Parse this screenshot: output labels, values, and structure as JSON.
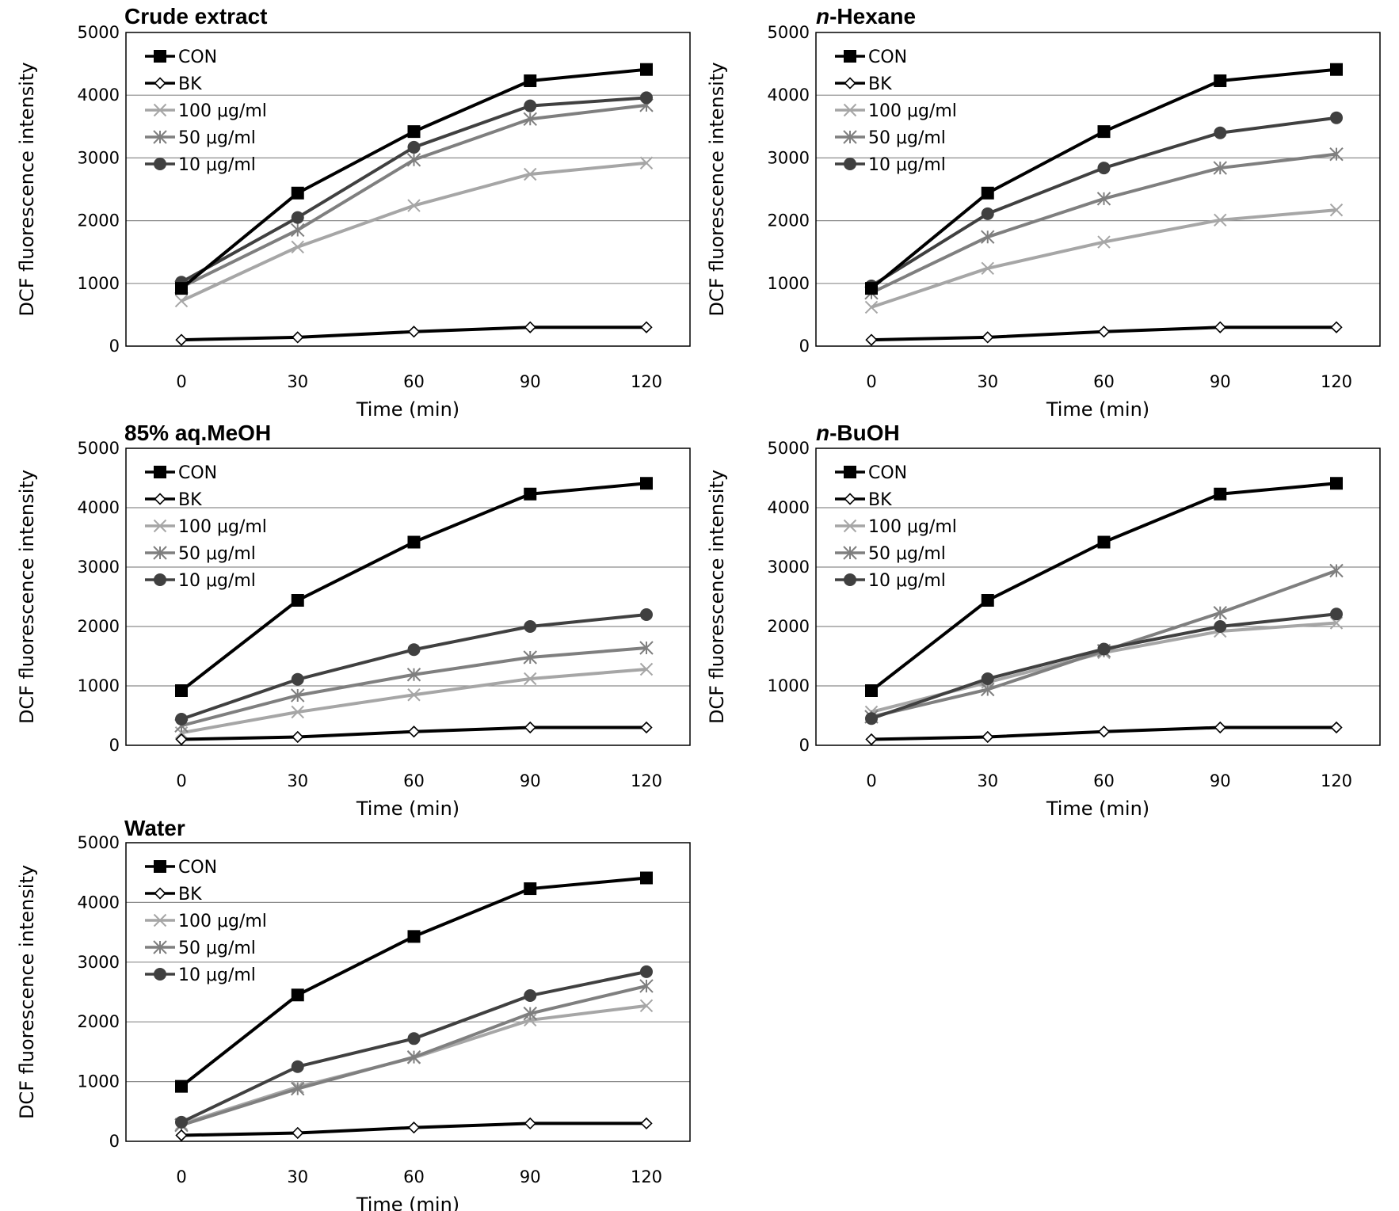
{
  "figure": {
    "colors": {
      "CON": "#000000",
      "BK": "#000000",
      "100": "#a6a6a6",
      "50": "#7f7f7f",
      "10": "#404040"
    },
    "series_styles": [
      {
        "name": "CON",
        "marker": "filled-square"
      },
      {
        "name": "BK",
        "marker": "open-diamond"
      },
      {
        "name": "100 μg/ml",
        "marker": "x-cross"
      },
      {
        "name": "50 μg/ml",
        "marker": "asterisk"
      },
      {
        "name": "10 μg/ml",
        "marker": "filled-circle"
      }
    ]
  },
  "chart_data": [
    {
      "id": "crude-extract",
      "type": "line",
      "title": "Crude extract",
      "title_prefix_italic": "",
      "title_rest": "Crude extract",
      "xlabel": "Time (min)",
      "ylabel": "DCF fluorescence intensity",
      "x": [
        0,
        30,
        60,
        90,
        120
      ],
      "x_tick_labels": [
        "0",
        "30",
        "60",
        "90",
        "120"
      ],
      "ylim": [
        0,
        5000
      ],
      "y_ticks": [
        0,
        1000,
        2000,
        3000,
        4000,
        5000
      ],
      "y_tick_labels": [
        "0",
        "1000",
        "2000",
        "3000",
        "4000",
        "5000"
      ],
      "grid": true,
      "legend": "top-left",
      "series": [
        {
          "name": "CON",
          "values": [
            920,
            2440,
            3420,
            4230,
            4410
          ]
        },
        {
          "name": "BK",
          "values": [
            100,
            140,
            230,
            300,
            300
          ]
        },
        {
          "name": "100 μg/ml",
          "values": [
            720,
            1580,
            2240,
            2740,
            2920
          ]
        },
        {
          "name": "50 μg/ml",
          "values": [
            940,
            1850,
            2970,
            3620,
            3840
          ]
        },
        {
          "name": "10 μg/ml",
          "values": [
            1020,
            2050,
            3170,
            3830,
            3960
          ]
        }
      ]
    },
    {
      "id": "n-hexane",
      "type": "line",
      "title": "n-Hexane",
      "title_prefix_italic": "n",
      "title_rest": "-Hexane",
      "xlabel": "Time (min)",
      "ylabel": "DCF fluorescence intensity",
      "x": [
        0,
        30,
        60,
        90,
        120
      ],
      "x_tick_labels": [
        "0",
        "30",
        "60",
        "90",
        "120"
      ],
      "ylim": [
        0,
        5000
      ],
      "y_ticks": [
        0,
        1000,
        2000,
        3000,
        4000,
        5000
      ],
      "y_tick_labels": [
        "0",
        "1000",
        "2000",
        "3000",
        "4000",
        "5000"
      ],
      "grid": true,
      "legend": "top-left",
      "series": [
        {
          "name": "CON",
          "values": [
            920,
            2440,
            3420,
            4230,
            4410
          ]
        },
        {
          "name": "BK",
          "values": [
            100,
            140,
            230,
            300,
            300
          ]
        },
        {
          "name": "100 μg/ml",
          "values": [
            620,
            1240,
            1660,
            2010,
            2170
          ]
        },
        {
          "name": "50 μg/ml",
          "values": [
            850,
            1740,
            2350,
            2840,
            3060
          ]
        },
        {
          "name": "10 μg/ml",
          "values": [
            960,
            2110,
            2840,
            3400,
            3640
          ]
        }
      ]
    },
    {
      "id": "aq-meoh",
      "type": "line",
      "title": "85% aq.MeOH",
      "title_prefix_italic": "",
      "title_rest": "85% aq.MeOH",
      "xlabel": "Time (min)",
      "ylabel": "DCF fluorescence intensity",
      "x": [
        0,
        30,
        60,
        90,
        120
      ],
      "x_tick_labels": [
        "0",
        "30",
        "60",
        "90",
        "120"
      ],
      "ylim": [
        0,
        5000
      ],
      "y_ticks": [
        0,
        1000,
        2000,
        3000,
        4000,
        5000
      ],
      "y_tick_labels": [
        "0",
        "1000",
        "2000",
        "3000",
        "4000",
        "5000"
      ],
      "grid": true,
      "legend": "top-left",
      "series": [
        {
          "name": "CON",
          "values": [
            920,
            2440,
            3420,
            4230,
            4410
          ]
        },
        {
          "name": "BK",
          "values": [
            100,
            140,
            230,
            300,
            300
          ]
        },
        {
          "name": "100 μg/ml",
          "values": [
            210,
            560,
            850,
            1120,
            1280
          ]
        },
        {
          "name": "50 μg/ml",
          "values": [
            330,
            840,
            1190,
            1480,
            1640
          ]
        },
        {
          "name": "10 μg/ml",
          "values": [
            440,
            1110,
            1610,
            2000,
            2200
          ]
        }
      ]
    },
    {
      "id": "n-buoh",
      "type": "line",
      "title": "n-BuOH",
      "title_prefix_italic": "n",
      "title_rest": "-BuOH",
      "xlabel": "Time (min)",
      "ylabel": "DCF fluorescence intensity",
      "x": [
        0,
        30,
        60,
        90,
        120
      ],
      "x_tick_labels": [
        "0",
        "30",
        "60",
        "90",
        "120"
      ],
      "ylim": [
        0,
        5000
      ],
      "y_ticks": [
        0,
        1000,
        2000,
        3000,
        4000,
        5000
      ],
      "y_tick_labels": [
        "0",
        "1000",
        "2000",
        "3000",
        "4000",
        "5000"
      ],
      "grid": true,
      "legend": "top-left",
      "series": [
        {
          "name": "CON",
          "values": [
            920,
            2440,
            3420,
            4230,
            4410
          ]
        },
        {
          "name": "BK",
          "values": [
            100,
            140,
            230,
            300,
            300
          ]
        },
        {
          "name": "100 μg/ml",
          "values": [
            560,
            1060,
            1560,
            1920,
            2060
          ]
        },
        {
          "name": "50 μg/ml",
          "values": [
            480,
            940,
            1590,
            2230,
            2940
          ]
        },
        {
          "name": "10 μg/ml",
          "values": [
            450,
            1120,
            1620,
            2000,
            2210
          ]
        }
      ]
    },
    {
      "id": "water",
      "type": "line",
      "title": "Water",
      "title_prefix_italic": "",
      "title_rest": "Water",
      "xlabel": "Time (min)",
      "ylabel": "DCF fluorescence intensity",
      "x": [
        0,
        30,
        60,
        90,
        120
      ],
      "x_tick_labels": [
        "0",
        "30",
        "60",
        "90",
        "120"
      ],
      "ylim": [
        0,
        5000
      ],
      "y_ticks": [
        0,
        1000,
        2000,
        3000,
        4000,
        5000
      ],
      "y_tick_labels": [
        "0",
        "1000",
        "2000",
        "3000",
        "4000",
        "5000"
      ],
      "grid": true,
      "legend": "top-left",
      "series": [
        {
          "name": "CON",
          "values": [
            920,
            2450,
            3430,
            4230,
            4410
          ]
        },
        {
          "name": "BK",
          "values": [
            100,
            140,
            230,
            300,
            300
          ]
        },
        {
          "name": "100 μg/ml",
          "values": [
            290,
            910,
            1400,
            2030,
            2270
          ]
        },
        {
          "name": "50 μg/ml",
          "values": [
            270,
            880,
            1410,
            2140,
            2600
          ]
        },
        {
          "name": "10 μg/ml",
          "values": [
            320,
            1250,
            1720,
            2440,
            2840
          ]
        }
      ]
    }
  ]
}
